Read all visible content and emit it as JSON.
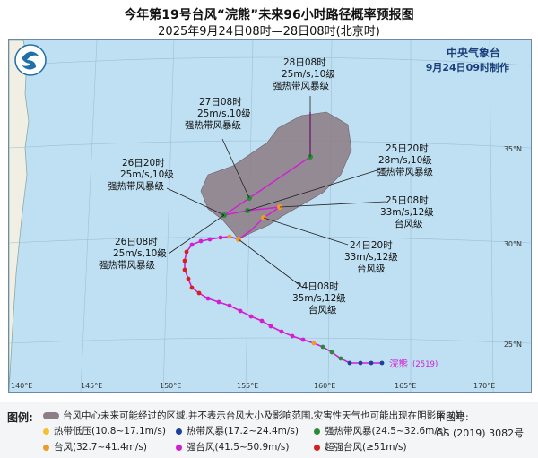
{
  "title_line1": "今年第19号台风“浣熊”未来96小时路径概率预报图",
  "title_line2": "2025年9月24日08时—28日08时(北京时)",
  "agency": "中央气象台",
  "issued": "9月24日09时制作",
  "storm_label": "浣熊",
  "storm_code": "(2519)",
  "lon_labels": [
    "140°E",
    "145°E",
    "150°E",
    "155°E",
    "160°E",
    "165°E",
    "170°E"
  ],
  "lat_labels": [
    "25°N",
    "30°N",
    "35°N"
  ],
  "callouts": [
    {
      "time": "28日08时",
      "wind": "25m/s,10级",
      "grade": "强热带风暴级"
    },
    {
      "time": "27日08时",
      "wind": "25m/s,10级",
      "grade": "强热带风暴级"
    },
    {
      "time": "26日20时",
      "wind": "25m/s,10级",
      "grade": "强热带风暴级"
    },
    {
      "time": "25日20时",
      "wind": "28m/s,10级",
      "grade": "强热带风暴级"
    },
    {
      "time": "25日08时",
      "wind": "33m/s,12级",
      "grade": "台风级"
    },
    {
      "time": "24日20时",
      "wind": "33m/s,12级",
      "grade": "台风级"
    },
    {
      "time": "26日08时",
      "wind": "25m/s,10级",
      "grade": "强热带风暴级"
    },
    {
      "time": "24日08时",
      "wind": "35m/s,12级",
      "grade": "台风级"
    }
  ],
  "legend": {
    "label": "图例:",
    "cone_text": "台风中心未来可能经过的区域,并不表示台风大小及影响范围,灾害性天气也可能出现在阴影区以外",
    "items": [
      {
        "text": "热带低压(10.8~17.1m/s)",
        "color": "#f2c230"
      },
      {
        "text": "热带风暴(17.2~24.4m/s)",
        "color": "#1e3f9a"
      },
      {
        "text": "强热带风暴(24.5~32.6m/s)",
        "color": "#2a8a3a"
      },
      {
        "text": "台风(32.7~41.4m/s)",
        "color": "#f09a2a"
      },
      {
        "text": "强台风(41.5~50.9m/s)",
        "color": "#d21fd2"
      },
      {
        "text": "超强台风(≥51m/s)",
        "color": "#d81f1f"
      }
    ],
    "review_label": "审图号:",
    "review_no": "GS (2019) 3082号"
  },
  "colors": {
    "sea": "#bfe0f2",
    "land": "#f1efe3",
    "cone": "#8d7d86",
    "track_past": "#d21fd2",
    "track_forecast": "#d21fd2"
  }
}
